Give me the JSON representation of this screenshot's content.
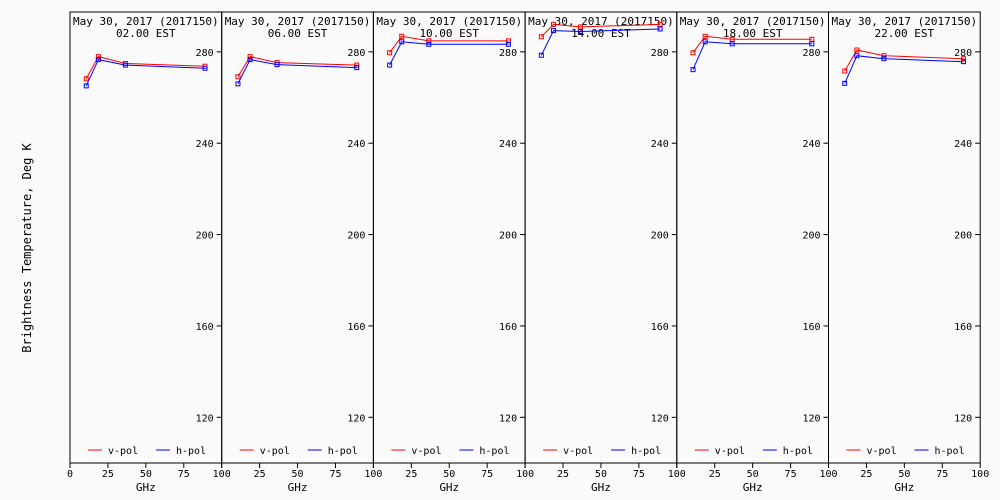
{
  "colors": {
    "v_pol": "#ff0000",
    "h_pol": "#0000ff",
    "background": "#fafafa",
    "axis": "#000000"
  },
  "chart_data": {
    "type": "line",
    "ylabel": "Brightness Temperature, Deg K",
    "xlabel": "GHz",
    "xlim": [
      0,
      100
    ],
    "ylim": [
      100,
      297
    ],
    "xticks": [
      0,
      25,
      50,
      75,
      100
    ],
    "yticks": [
      120,
      160,
      200,
      240,
      280
    ],
    "legend_position": "bottom",
    "panels": [
      {
        "title_date": "May 30, 2017 (2017150)",
        "title_time": "02.00 EST",
        "series": [
          {
            "name": "v-pol",
            "x": [
              10.7,
              18.7,
              36.5,
              89.0
            ],
            "y": [
              268.2,
              277.9,
              274.9,
              273.7
            ]
          },
          {
            "name": "h-pol",
            "x": [
              10.7,
              18.7,
              36.5,
              89.0
            ],
            "y": [
              265.1,
              276.6,
              274.2,
              272.8
            ]
          }
        ]
      },
      {
        "title_date": "May 30, 2017 (2017150)",
        "title_time": "06.00 EST",
        "series": [
          {
            "name": "v-pol",
            "x": [
              10.7,
              18.7,
              36.5,
              89.0
            ],
            "y": [
              269.1,
              277.9,
              275.3,
              274.2
            ]
          },
          {
            "name": "h-pol",
            "x": [
              10.7,
              18.7,
              36.5,
              89.0
            ],
            "y": [
              266.0,
              276.6,
              274.4,
              273.1
            ]
          }
        ]
      },
      {
        "title_date": "May 30, 2017 (2017150)",
        "title_time": "10.00 EST",
        "series": [
          {
            "name": "v-pol",
            "x": [
              10.7,
              18.7,
              36.5,
              89.0
            ],
            "y": [
              279.6,
              286.8,
              284.8,
              284.8
            ]
          },
          {
            "name": "h-pol",
            "x": [
              10.7,
              18.7,
              36.5,
              89.0
            ],
            "y": [
              274.2,
              284.4,
              283.3,
              283.3
            ]
          }
        ]
      },
      {
        "title_date": "May 30, 2017 (2017150)",
        "title_time": "14.00 EST",
        "series": [
          {
            "name": "v-pol",
            "x": [
              10.7,
              18.7,
              36.5,
              89.0
            ],
            "y": [
              286.6,
              292.0,
              290.9,
              292.0
            ]
          },
          {
            "name": "h-pol",
            "x": [
              10.7,
              18.7,
              36.5,
              89.0
            ],
            "y": [
              278.5,
              289.3,
              288.9,
              290.0
            ]
          }
        ]
      },
      {
        "title_date": "May 30, 2017 (2017150)",
        "title_time": "18.00 EST",
        "series": [
          {
            "name": "v-pol",
            "x": [
              10.7,
              18.7,
              36.5,
              89.0
            ],
            "y": [
              279.6,
              286.8,
              285.5,
              285.5
            ]
          },
          {
            "name": "h-pol",
            "x": [
              10.7,
              18.7,
              36.5,
              89.0
            ],
            "y": [
              272.2,
              284.4,
              283.5,
              283.5
            ]
          }
        ]
      },
      {
        "title_date": "May 30, 2017 (2017150)",
        "title_time": "22.00 EST",
        "series": [
          {
            "name": "v-pol",
            "x": [
              10.7,
              18.7,
              36.5,
              89.0
            ],
            "y": [
              271.6,
              280.8,
              278.3,
              277.0
            ]
          },
          {
            "name": "h-pol",
            "x": [
              10.7,
              18.7,
              36.5,
              89.0
            ],
            "y": [
              266.2,
              278.3,
              277.0,
              275.7
            ]
          }
        ]
      }
    ]
  }
}
